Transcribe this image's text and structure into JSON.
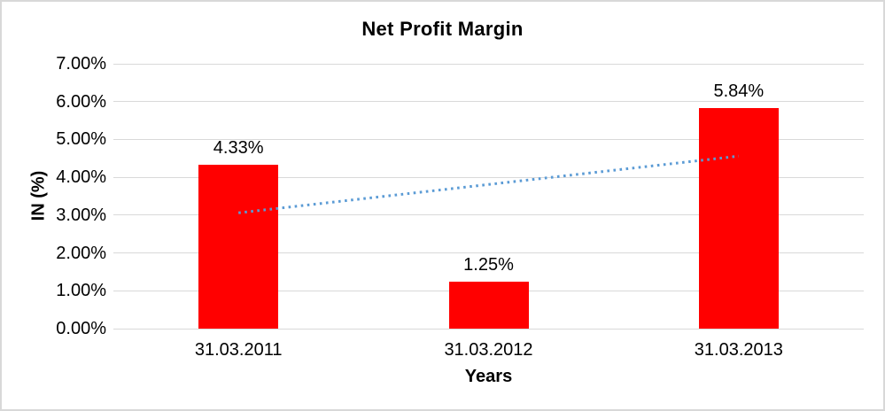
{
  "chart_data": {
    "type": "bar",
    "title": "Net Profit Margin",
    "xlabel": "Years",
    "ylabel": "IN (%)",
    "categories": [
      "31.03.2011",
      "31.03.2012",
      "31.03.2013"
    ],
    "values": [
      4.33,
      1.25,
      5.84
    ],
    "data_labels": [
      "4.33%",
      "1.25%",
      "5.84%"
    ],
    "ylim": [
      0,
      7
    ],
    "ytick_step": 1,
    "ytick_labels": [
      "0.00%",
      "1.00%",
      "2.00%",
      "3.00%",
      "4.00%",
      "5.00%",
      "6.00%",
      "7.00%"
    ],
    "grid": true,
    "legend": false,
    "bar_color": "#ff0000",
    "gridline_color": "#d9d9d9",
    "text_color": "#000000",
    "trendline": {
      "type": "linear",
      "style": "dotted",
      "color": "#5b9bd5",
      "start_value": 3.06,
      "end_value": 4.56
    }
  }
}
